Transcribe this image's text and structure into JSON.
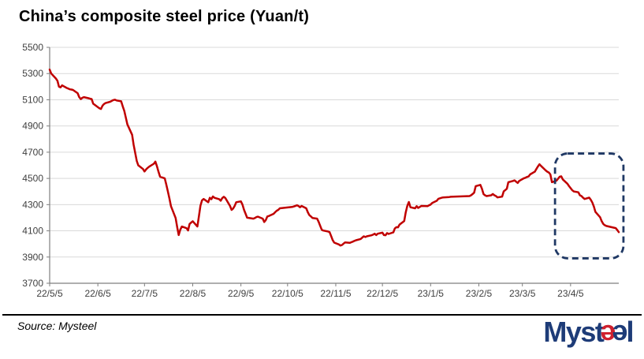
{
  "header": {
    "title": "China’s composite steel price (Yuan/t)"
  },
  "footer": {
    "source": "Source: Mysteel"
  },
  "logo": {
    "prefix": "Myst",
    "e1": "e",
    "e2": "e",
    "suffix": "l",
    "blue": "#1e3c78",
    "red": "#cf202e"
  },
  "colors": {
    "line": "#c00000",
    "grid": "#d9d9d9",
    "axis": "#7f7f7f",
    "tick_label": "#404040",
    "highlight": "#1f3864"
  },
  "chart_data": {
    "type": "line",
    "title": "China’s composite steel price (Yuan/t)",
    "xlabel": "",
    "ylabel": "",
    "grid": "horizontal",
    "legend": "none",
    "ylim": [
      3700,
      5500
    ],
    "yticks": [
      5500,
      5300,
      5100,
      4900,
      4700,
      4500,
      4300,
      4100,
      3900,
      3700
    ],
    "x_range": [
      "2022-05-05",
      "2023-05-06"
    ],
    "xticks": [
      {
        "label": "22/5/5",
        "date": "2022-05-05"
      },
      {
        "label": "22/6/5",
        "date": "2022-06-05"
      },
      {
        "label": "22/7/5",
        "date": "2022-07-05"
      },
      {
        "label": "22/8/5",
        "date": "2022-08-05"
      },
      {
        "label": "22/9/5",
        "date": "2022-09-05"
      },
      {
        "label": "22/10/5",
        "date": "2022-10-05"
      },
      {
        "label": "22/11/5",
        "date": "2022-11-05"
      },
      {
        "label": "22/12/5",
        "date": "2022-12-05"
      },
      {
        "label": "23/1/5",
        "date": "2023-01-05"
      },
      {
        "label": "23/2/5",
        "date": "2023-02-05"
      },
      {
        "label": "23/3/5",
        "date": "2023-03-05"
      },
      {
        "label": "23/4/5",
        "date": "2023-04-05"
      }
    ],
    "highlight_box": {
      "start_date": "2023-03-26",
      "end_date": "2023-05-09",
      "top_value": 4690,
      "bottom_value": 3890,
      "color": "#1f3864",
      "style": "dashed-rounded"
    },
    "series": [
      {
        "name": "China composite steel price",
        "color": "#c00000",
        "points": [
          [
            "2022-05-05",
            5330
          ],
          [
            "2022-05-06",
            5300
          ],
          [
            "2022-05-09",
            5262
          ],
          [
            "2022-05-10",
            5245
          ],
          [
            "2022-05-11",
            5200
          ],
          [
            "2022-05-12",
            5195
          ],
          [
            "2022-05-13",
            5210
          ],
          [
            "2022-05-16",
            5190
          ],
          [
            "2022-05-17",
            5185
          ],
          [
            "2022-05-18",
            5180
          ],
          [
            "2022-05-19",
            5178
          ],
          [
            "2022-05-20",
            5175
          ],
          [
            "2022-05-23",
            5150
          ],
          [
            "2022-05-24",
            5120
          ],
          [
            "2022-05-25",
            5105
          ],
          [
            "2022-05-26",
            5115
          ],
          [
            "2022-05-27",
            5120
          ],
          [
            "2022-05-30",
            5112
          ],
          [
            "2022-05-31",
            5108
          ],
          [
            "2022-06-01",
            5105
          ],
          [
            "2022-06-02",
            5070
          ],
          [
            "2022-06-06",
            5035
          ],
          [
            "2022-06-07",
            5030
          ],
          [
            "2022-06-08",
            5055
          ],
          [
            "2022-06-09",
            5068
          ],
          [
            "2022-06-10",
            5075
          ],
          [
            "2022-06-13",
            5085
          ],
          [
            "2022-06-14",
            5092
          ],
          [
            "2022-06-15",
            5098
          ],
          [
            "2022-06-16",
            5100
          ],
          [
            "2022-06-17",
            5095
          ],
          [
            "2022-06-20",
            5088
          ],
          [
            "2022-06-21",
            5050
          ],
          [
            "2022-06-22",
            5015
          ],
          [
            "2022-06-23",
            4962
          ],
          [
            "2022-06-24",
            4912
          ],
          [
            "2022-06-27",
            4833
          ],
          [
            "2022-06-28",
            4758
          ],
          [
            "2022-06-29",
            4695
          ],
          [
            "2022-06-30",
            4633
          ],
          [
            "2022-07-01",
            4600
          ],
          [
            "2022-07-04",
            4572
          ],
          [
            "2022-07-05",
            4553
          ],
          [
            "2022-07-06",
            4568
          ],
          [
            "2022-07-07",
            4580
          ],
          [
            "2022-07-08",
            4590
          ],
          [
            "2022-07-11",
            4612
          ],
          [
            "2022-07-12",
            4628
          ],
          [
            "2022-07-13",
            4593
          ],
          [
            "2022-07-14",
            4550
          ],
          [
            "2022-07-15",
            4513
          ],
          [
            "2022-07-18",
            4500
          ],
          [
            "2022-07-19",
            4452
          ],
          [
            "2022-07-20",
            4402
          ],
          [
            "2022-07-21",
            4348
          ],
          [
            "2022-07-22",
            4288
          ],
          [
            "2022-07-25",
            4198
          ],
          [
            "2022-07-26",
            4128
          ],
          [
            "2022-07-27",
            4068
          ],
          [
            "2022-07-28",
            4108
          ],
          [
            "2022-07-29",
            4133
          ],
          [
            "2022-08-01",
            4120
          ],
          [
            "2022-08-02",
            4103
          ],
          [
            "2022-08-03",
            4152
          ],
          [
            "2022-08-04",
            4163
          ],
          [
            "2022-08-05",
            4173
          ],
          [
            "2022-08-08",
            4133
          ],
          [
            "2022-08-09",
            4213
          ],
          [
            "2022-08-10",
            4292
          ],
          [
            "2022-08-11",
            4333
          ],
          [
            "2022-08-12",
            4343
          ],
          [
            "2022-08-15",
            4318
          ],
          [
            "2022-08-16",
            4352
          ],
          [
            "2022-08-17",
            4342
          ],
          [
            "2022-08-18",
            4362
          ],
          [
            "2022-08-19",
            4352
          ],
          [
            "2022-08-22",
            4342
          ],
          [
            "2022-08-23",
            4330
          ],
          [
            "2022-08-24",
            4350
          ],
          [
            "2022-08-25",
            4360
          ],
          [
            "2022-08-26",
            4350
          ],
          [
            "2022-08-29",
            4290
          ],
          [
            "2022-08-30",
            4260
          ],
          [
            "2022-08-31",
            4270
          ],
          [
            "2022-09-01",
            4290
          ],
          [
            "2022-09-02",
            4318
          ],
          [
            "2022-09-05",
            4325
          ],
          [
            "2022-09-06",
            4300
          ],
          [
            "2022-09-07",
            4260
          ],
          [
            "2022-09-08",
            4230
          ],
          [
            "2022-09-09",
            4200
          ],
          [
            "2022-09-13",
            4193
          ],
          [
            "2022-09-14",
            4198
          ],
          [
            "2022-09-15",
            4205
          ],
          [
            "2022-09-16",
            4208
          ],
          [
            "2022-09-19",
            4193
          ],
          [
            "2022-09-20",
            4168
          ],
          [
            "2022-09-21",
            4182
          ],
          [
            "2022-09-22",
            4210
          ],
          [
            "2022-09-23",
            4213
          ],
          [
            "2022-09-26",
            4230
          ],
          [
            "2022-09-27",
            4242
          ],
          [
            "2022-09-28",
            4253
          ],
          [
            "2022-09-29",
            4260
          ],
          [
            "2022-09-30",
            4272
          ],
          [
            "2022-10-08",
            4282
          ],
          [
            "2022-10-10",
            4290
          ],
          [
            "2022-10-11",
            4295
          ],
          [
            "2022-10-12",
            4290
          ],
          [
            "2022-10-13",
            4280
          ],
          [
            "2022-10-14",
            4290
          ],
          [
            "2022-10-17",
            4272
          ],
          [
            "2022-10-18",
            4242
          ],
          [
            "2022-10-19",
            4220
          ],
          [
            "2022-10-20",
            4210
          ],
          [
            "2022-10-21",
            4198
          ],
          [
            "2022-10-24",
            4193
          ],
          [
            "2022-10-25",
            4168
          ],
          [
            "2022-10-26",
            4138
          ],
          [
            "2022-10-27",
            4108
          ],
          [
            "2022-10-28",
            4102
          ],
          [
            "2022-10-31",
            4095
          ],
          [
            "2022-11-01",
            4090
          ],
          [
            "2022-11-02",
            4060
          ],
          [
            "2022-11-03",
            4030
          ],
          [
            "2022-11-04",
            4010
          ],
          [
            "2022-11-07",
            3996
          ],
          [
            "2022-11-08",
            3988
          ],
          [
            "2022-11-09",
            3992
          ],
          [
            "2022-11-10",
            4002
          ],
          [
            "2022-11-11",
            4012
          ],
          [
            "2022-11-14",
            4008
          ],
          [
            "2022-11-15",
            4013
          ],
          [
            "2022-11-16",
            4018
          ],
          [
            "2022-11-17",
            4023
          ],
          [
            "2022-11-18",
            4028
          ],
          [
            "2022-11-21",
            4038
          ],
          [
            "2022-11-22",
            4048
          ],
          [
            "2022-11-23",
            4058
          ],
          [
            "2022-11-24",
            4053
          ],
          [
            "2022-11-25",
            4058
          ],
          [
            "2022-11-28",
            4066
          ],
          [
            "2022-11-29",
            4071
          ],
          [
            "2022-11-30",
            4078
          ],
          [
            "2022-12-01",
            4068
          ],
          [
            "2022-12-02",
            4078
          ],
          [
            "2022-12-05",
            4086
          ],
          [
            "2022-12-06",
            4068
          ],
          [
            "2022-12-07",
            4066
          ],
          [
            "2022-12-08",
            4083
          ],
          [
            "2022-12-09",
            4076
          ],
          [
            "2022-12-12",
            4088
          ],
          [
            "2022-12-13",
            4118
          ],
          [
            "2022-12-14",
            4128
          ],
          [
            "2022-12-15",
            4126
          ],
          [
            "2022-12-16",
            4148
          ],
          [
            "2022-12-19",
            4175
          ],
          [
            "2022-12-20",
            4240
          ],
          [
            "2022-12-21",
            4290
          ],
          [
            "2022-12-22",
            4320
          ],
          [
            "2022-12-23",
            4280
          ],
          [
            "2022-12-26",
            4272
          ],
          [
            "2022-12-27",
            4288
          ],
          [
            "2022-12-28",
            4275
          ],
          [
            "2022-12-29",
            4282
          ],
          [
            "2022-12-30",
            4290
          ],
          [
            "2023-01-03",
            4288
          ],
          [
            "2023-01-04",
            4295
          ],
          [
            "2023-01-05",
            4300
          ],
          [
            "2023-01-06",
            4312
          ],
          [
            "2023-01-09",
            4330
          ],
          [
            "2023-01-10",
            4345
          ],
          [
            "2023-01-12",
            4352
          ],
          [
            "2023-01-13",
            4355
          ],
          [
            "2023-01-17",
            4358
          ],
          [
            "2023-01-18",
            4360
          ],
          [
            "2023-01-30",
            4365
          ],
          [
            "2023-01-31",
            4371
          ],
          [
            "2023-02-01",
            4381
          ],
          [
            "2023-02-02",
            4391
          ],
          [
            "2023-02-03",
            4441
          ],
          [
            "2023-02-06",
            4451
          ],
          [
            "2023-02-07",
            4421
          ],
          [
            "2023-02-08",
            4381
          ],
          [
            "2023-02-09",
            4371
          ],
          [
            "2023-02-10",
            4365
          ],
          [
            "2023-02-13",
            4371
          ],
          [
            "2023-02-14",
            4381
          ],
          [
            "2023-02-15",
            4371
          ],
          [
            "2023-02-16",
            4365
          ],
          [
            "2023-02-17",
            4355
          ],
          [
            "2023-02-20",
            4361
          ],
          [
            "2023-02-21",
            4401
          ],
          [
            "2023-02-22",
            4411
          ],
          [
            "2023-02-23",
            4421
          ],
          [
            "2023-02-24",
            4471
          ],
          [
            "2023-02-27",
            4481
          ],
          [
            "2023-02-28",
            4485
          ],
          [
            "2023-03-01",
            4475
          ],
          [
            "2023-03-02",
            4465
          ],
          [
            "2023-03-03",
            4481
          ],
          [
            "2023-03-06",
            4501
          ],
          [
            "2023-03-07",
            4505
          ],
          [
            "2023-03-08",
            4511
          ],
          [
            "2023-03-09",
            4515
          ],
          [
            "2023-03-10",
            4531
          ],
          [
            "2023-03-13",
            4551
          ],
          [
            "2023-03-14",
            4571
          ],
          [
            "2023-03-15",
            4591
          ],
          [
            "2023-03-16",
            4608
          ],
          [
            "2023-03-17",
            4595
          ],
          [
            "2023-03-20",
            4561
          ],
          [
            "2023-03-21",
            4551
          ],
          [
            "2023-03-22",
            4545
          ],
          [
            "2023-03-23",
            4531
          ],
          [
            "2023-03-24",
            4471
          ],
          [
            "2023-03-27",
            4483
          ],
          [
            "2023-03-28",
            4498
          ],
          [
            "2023-03-29",
            4513
          ],
          [
            "2023-03-30",
            4516
          ],
          [
            "2023-03-31",
            4492
          ],
          [
            "2023-04-03",
            4459
          ],
          [
            "2023-04-04",
            4441
          ],
          [
            "2023-04-06",
            4411
          ],
          [
            "2023-04-07",
            4401
          ],
          [
            "2023-04-10",
            4394
          ],
          [
            "2023-04-11",
            4371
          ],
          [
            "2023-04-12",
            4365
          ],
          [
            "2023-04-13",
            4353
          ],
          [
            "2023-04-14",
            4343
          ],
          [
            "2023-04-17",
            4353
          ],
          [
            "2023-04-18",
            4337
          ],
          [
            "2023-04-19",
            4315
          ],
          [
            "2023-04-20",
            4285
          ],
          [
            "2023-04-21",
            4244
          ],
          [
            "2023-04-24",
            4204
          ],
          [
            "2023-04-25",
            4174
          ],
          [
            "2023-04-26",
            4153
          ],
          [
            "2023-04-27",
            4143
          ],
          [
            "2023-04-28",
            4137
          ],
          [
            "2023-05-04",
            4121
          ],
          [
            "2023-05-05",
            4107
          ],
          [
            "2023-05-06",
            4090
          ]
        ]
      }
    ]
  }
}
